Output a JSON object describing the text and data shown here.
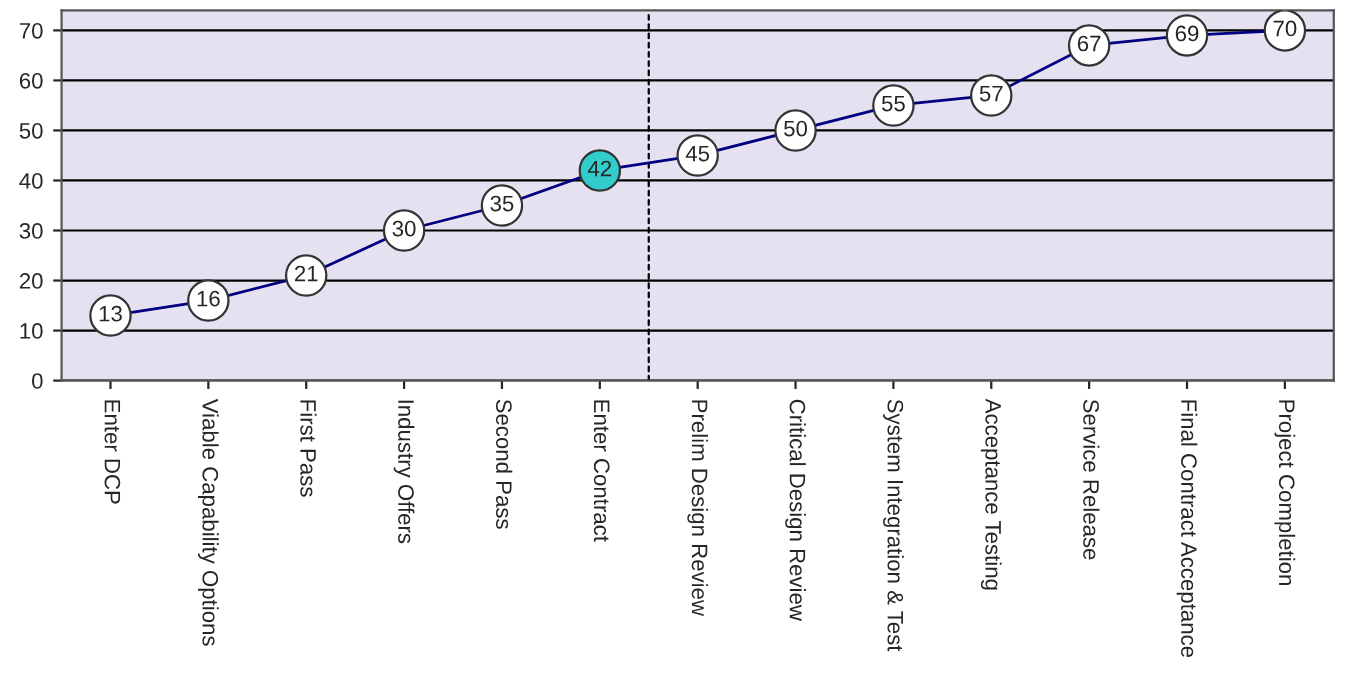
{
  "chart_data": {
    "type": "line",
    "categories": [
      "Enter DCP",
      "Viable Capability Options",
      "First Pass",
      "Industry Offers",
      "Second Pass",
      "Enter Contract",
      "Prelim Design Review",
      "Critical Design Review",
      "System Integration & Test",
      "Acceptance Testing",
      "Service Release",
      "Final Contract Acceptance",
      "Project Completion"
    ],
    "series": [
      {
        "color": "#000080",
        "values": [
          13,
          16,
          21,
          30,
          35,
          42,
          45,
          50,
          55,
          57,
          67,
          69,
          70
        ],
        "colors": [
          "#ffffff",
          "#ffffff",
          "#ffffff",
          "#ffffff",
          "#ffffff",
          "#33cccc",
          "#ffffff",
          "#ffffff",
          "#ffffff",
          "#ffffff",
          "#ffffff",
          "#ffffff",
          "#ffffff"
        ]
      }
    ],
    "ylim": [
      0,
      74
    ],
    "yticks": [
      0,
      10,
      20,
      30,
      40,
      50,
      60,
      70
    ],
    "grid": "y",
    "marker": "circle",
    "line_style": "solid",
    "data_labels": true
  }
}
